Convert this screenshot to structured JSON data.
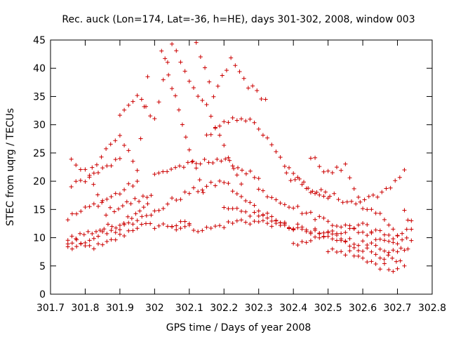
{
  "chart_data": {
    "type": "scatter",
    "title": "Rec. auck (Lon=174, Lat=-36, h=HE), days 301-302, 2008, window 003",
    "xlabel": "GPS time / Days of year 2008",
    "ylabel": "STEC from uqrg / TECUs",
    "xlim": [
      301.7,
      302.8
    ],
    "ylim": [
      0,
      45
    ],
    "xticks": [
      "301.7",
      "301.8",
      "301.9",
      "302",
      "302.1",
      "302.2",
      "302.3",
      "302.4",
      "302.5",
      "302.6",
      "302.7",
      "302.8"
    ],
    "yticks": [
      "0",
      "5",
      "10",
      "15",
      "20",
      "25",
      "30",
      "35",
      "40",
      "45"
    ],
    "grid": false,
    "marker": "+",
    "color": "#cc0000",
    "series": [
      {
        "arcs": [
          {
            "t": [
              301.75,
              301.85,
              301.95,
              302.05,
              302.1
            ],
            "v": [
              8.2,
              8.5,
              12.0,
              12.2,
              12.5
            ]
          },
          {
            "t": [
              301.75,
              301.8,
              301.85,
              301.9,
              301.95,
              301.99
            ],
            "v": [
              9.0,
              9.5,
              10.5,
              11.5,
              13.0,
              14.0
            ]
          },
          {
            "t": [
              301.75,
              301.82,
              301.9,
              301.98
            ],
            "v": [
              10.0,
              11.0,
              12.5,
              16.0
            ]
          },
          {
            "t": [
              301.75,
              301.8,
              301.85,
              301.9,
              301.95
            ],
            "v": [
              13.5,
              15.0,
              16.5,
              18.0,
              20.0
            ]
          },
          {
            "t": [
              301.76,
              301.8,
              301.85,
              301.9
            ],
            "v": [
              19.0,
              20.5,
              22.0,
              24.0
            ]
          },
          {
            "t": [
              301.76,
              301.8,
              301.86,
              301.92,
              301.99
            ],
            "v": [
              23.3,
              22.0,
              14.5,
              16.0,
              17.5
            ]
          },
          {
            "t": [
              301.82,
              301.86,
              301.9,
              301.95,
              301.98
            ],
            "v": [
              22.5,
              25.5,
              27.5,
              22.5,
              38.5
            ]
          },
          {
            "t": [
              301.9,
              301.95,
              302.0,
              302.05,
              302.1,
              302.15,
              302.2,
              302.25
            ],
            "v": [
              31.5,
              35.0,
              31.0,
              44.5,
              38.0,
              33.0,
              26.0,
              19.5
            ]
          },
          {
            "t": [
              302.02,
              302.04,
              302.06,
              302.08,
              302.1,
              302.12,
              302.14
            ],
            "v": [
              43.5,
              39.0,
              35.0,
              30.5,
              26.0,
              22.0,
              18.0
            ]
          },
          {
            "t": [
              302.0,
              302.05,
              302.1,
              302.15,
              302.2,
              302.25,
              302.3,
              302.35,
              302.4
            ],
            "v": [
              14.5,
              16.5,
              18.0,
              19.0,
              20.0,
              17.0,
              15.0,
              13.0,
              11.5
            ]
          },
          {
            "t": [
              302.0,
              302.06,
              302.12,
              302.18,
              302.24,
              302.3
            ],
            "v": [
              21.0,
              22.5,
              23.0,
              24.0,
              22.5,
              20.5
            ]
          },
          {
            "t": [
              302.12,
              302.17,
              302.22,
              302.27,
              302.32
            ],
            "v": [
              44.0,
              35.0,
              41.5,
              37.0,
              34.5
            ]
          },
          {
            "t": [
              302.15,
              302.2,
              302.25,
              302.3,
              302.35,
              302.4,
              302.45,
              302.5
            ],
            "v": [
              28.0,
              30.0,
              31.5,
              29.5,
              25.0,
              21.0,
              18.5,
              17.0
            ]
          },
          {
            "t": [
              302.05,
              302.15,
              302.25,
              302.35,
              302.45,
              302.55,
              302.65,
              302.72
            ],
            "v": [
              12.0,
              11.5,
              13.0,
              12.5,
              11.0,
              9.0,
              7.0,
              5.0
            ]
          },
          {
            "t": [
              302.2,
              302.3,
              302.4,
              302.5,
              302.6,
              302.7
            ],
            "v": [
              15.0,
              14.0,
              12.0,
              10.5,
              9.0,
              7.5
            ]
          },
          {
            "t": [
              302.3,
              302.35,
              302.4,
              302.45,
              302.5,
              302.55,
              302.6,
              302.65,
              302.7,
              302.73
            ],
            "v": [
              18.5,
              17.0,
              15.5,
              14.0,
              13.0,
              12.0,
              11.0,
              10.0,
              9.0,
              8.0
            ]
          },
          {
            "t": [
              302.38,
              302.43,
              302.48,
              302.53,
              302.58,
              302.63,
              302.68,
              302.72
            ],
            "v": [
              21.0,
              19.5,
              18.0,
              17.0,
              16.0,
              17.5,
              18.5,
              22.0
            ]
          },
          {
            "t": [
              302.4,
              302.45,
              302.5,
              302.55,
              302.6,
              302.65,
              302.7,
              302.74
            ],
            "v": [
              9.0,
              9.5,
              10.5,
              11.0,
              12.0,
              11.0,
              10.0,
              13.0
            ]
          },
          {
            "t": [
              302.45,
              302.5,
              302.55,
              302.6,
              302.65,
              302.7,
              302.74
            ],
            "v": [
              24.5,
              21.5,
              22.5,
              15.5,
              14.0,
              10.0,
              9.5
            ]
          },
          {
            "t": [
              302.5,
              302.55,
              302.6,
              302.65,
              302.7
            ],
            "v": [
              8.0,
              7.5,
              6.0,
              5.0,
              4.5
            ]
          },
          {
            "t": [
              302.72,
              302.74
            ],
            "v": [
              15.0,
              11.5
            ]
          }
        ]
      }
    ]
  }
}
